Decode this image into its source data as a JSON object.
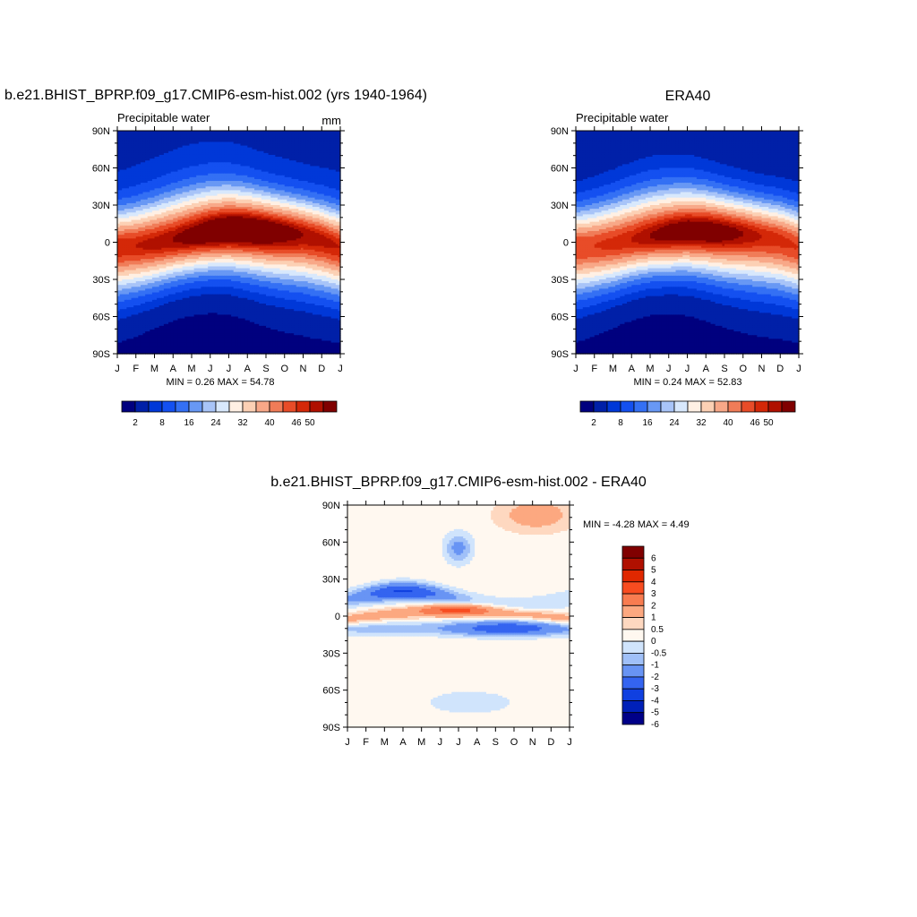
{
  "chart_data": [
    {
      "type": "heatmap",
      "title": "b.e21.BHIST_BPRP.f09_g17.CMIP6-esm-hist.002 (yrs 1940-1964)",
      "subtitle_left": "Precipitable water",
      "subtitle_right": "mm",
      "x_ticks": [
        "J",
        "F",
        "M",
        "A",
        "M",
        "J",
        "J",
        "A",
        "S",
        "O",
        "N",
        "D",
        "J"
      ],
      "y_ticks": [
        "90N",
        "60N",
        "30N",
        "0",
        "30S",
        "60S",
        "90S"
      ],
      "y_range": [
        -90,
        90
      ],
      "stats": "MIN =   0.26 MAX =  54.78",
      "min": 0.26,
      "max": 54.78,
      "colorbar_labels": [
        "2",
        "8",
        "16",
        "24",
        "32",
        "40",
        "46",
        "50"
      ],
      "field": {
        "itcz_center_lat": [
          -4,
          -3,
          -1,
          2,
          5,
          8,
          10,
          10,
          9,
          8,
          6,
          2,
          -4
        ],
        "equator_peak": [
          48,
          48,
          49,
          50,
          52,
          54,
          55,
          55,
          54,
          52,
          50,
          49,
          48
        ],
        "north_pole_value": 4.5,
        "south_pole_value": 1.5,
        "north_half_width": 20,
        "south_half_width": 22
      }
    },
    {
      "type": "heatmap",
      "title": "ERA40",
      "subtitle_left": "Precipitable water",
      "x_ticks": [
        "J",
        "F",
        "M",
        "A",
        "M",
        "J",
        "J",
        "A",
        "S",
        "O",
        "N",
        "D",
        "J"
      ],
      "y_ticks": [
        "90N",
        "60N",
        "30N",
        "0",
        "30S",
        "60S",
        "90S"
      ],
      "y_range": [
        -90,
        90
      ],
      "stats": "MIN =   0.24 MAX =  52.83",
      "min": 0.24,
      "max": 52.83,
      "colorbar_labels": [
        "2",
        "8",
        "16",
        "24",
        "32",
        "40",
        "46",
        "50"
      ],
      "field": {
        "itcz_center_lat": [
          -4,
          -3,
          -1,
          2,
          5,
          7,
          9,
          9,
          8,
          7,
          5,
          2,
          -4
        ],
        "equator_peak": [
          46,
          46,
          47,
          48,
          50,
          52,
          53,
          53,
          52,
          50,
          48,
          47,
          46
        ],
        "north_pole_value": 3.5,
        "south_pole_value": 1.5,
        "north_half_width": 20,
        "south_half_width": 22
      }
    },
    {
      "type": "heatmap",
      "title": "b.e21.BHIST_BPRP.f09_g17.CMIP6-esm-hist.002 - ERA40",
      "x_ticks": [
        "J",
        "F",
        "M",
        "A",
        "M",
        "J",
        "J",
        "A",
        "S",
        "O",
        "N",
        "D",
        "J"
      ],
      "y_ticks": [
        "90N",
        "60N",
        "30N",
        "0",
        "30S",
        "60S",
        "90S"
      ],
      "y_range": [
        -90,
        90
      ],
      "stats": "MIN =  -4.28 MAX =   4.49",
      "min": -4.28,
      "max": 4.49,
      "colorbar_labels": [
        "6",
        "5",
        "4",
        "3",
        "2",
        "1",
        "0.5",
        "0",
        "-0.5",
        "-1",
        "-2",
        "-3",
        "-4",
        "-5",
        "-6"
      ],
      "field": {
        "band_positive_equator": 3,
        "band_negative_north": -3,
        "band_negative_south": -2,
        "north_polar_positive": 1
      }
    }
  ],
  "palettes": {
    "sequential": [
      "#00007f",
      "#0020a8",
      "#0038d8",
      "#1450f0",
      "#3470f4",
      "#6898f4",
      "#a8c4f8",
      "#d8e8fc",
      "#fff0e4",
      "#fcd0b4",
      "#f8a888",
      "#f07c58",
      "#e84c28",
      "#d42808",
      "#b01000",
      "#800000"
    ],
    "diverging": [
      "#800000",
      "#b01000",
      "#e02800",
      "#f84c20",
      "#f87c50",
      "#fca880",
      "#fed8c0",
      "#fff8f0",
      "#d0e4fc",
      "#a0c0f8",
      "#6894f4",
      "#3464f0",
      "#1040e0",
      "#0020b8",
      "#000088"
    ]
  }
}
